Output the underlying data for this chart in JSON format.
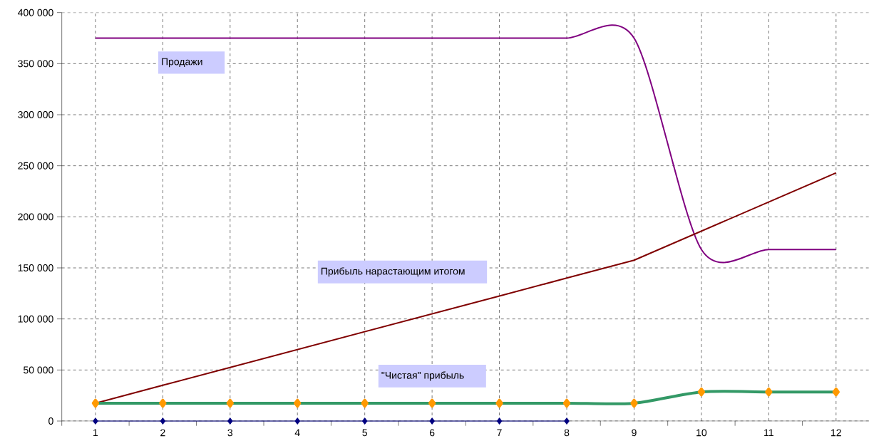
{
  "chart_data": {
    "type": "line",
    "categories": [
      "1",
      "2",
      "3",
      "4",
      "5",
      "6",
      "7",
      "8",
      "9",
      "10",
      "11",
      "12"
    ],
    "ylim": [
      0,
      400000
    ],
    "yticks": [
      {
        "value": 0,
        "label": "0"
      },
      {
        "value": 50000,
        "label": "50 000"
      },
      {
        "value": 100000,
        "label": "100 000"
      },
      {
        "value": 150000,
        "label": "150 000"
      },
      {
        "value": 200000,
        "label": "200 000"
      },
      {
        "value": 250000,
        "label": "250 000"
      },
      {
        "value": 300000,
        "label": "300 000"
      },
      {
        "value": 350000,
        "label": "350 000"
      },
      {
        "value": 400000,
        "label": "400 000"
      }
    ],
    "grid": true,
    "series": [
      {
        "name": "Продажи",
        "color": "#800080",
        "marker": "none",
        "values": [
          375000,
          375000,
          375000,
          375000,
          375000,
          375000,
          375000,
          375000,
          375000,
          168000,
          168000,
          168000
        ]
      },
      {
        "name": "Прибыль нарастающим итогом",
        "color": "#800000",
        "marker": "none",
        "values": [
          17500,
          35000,
          52500,
          70000,
          87500,
          105000,
          122500,
          140000,
          157500,
          186000,
          214500,
          243000
        ]
      },
      {
        "name": "\"Чистая\" прибыль",
        "color": "#339966",
        "marker": "diamond",
        "colors": [
          "#ff9900",
          "#ff9900",
          "#ff9900",
          "#ff9900",
          "#ff9900",
          "#ff9900",
          "#ff9900",
          "#ff9900",
          "#ff9900",
          "#ff9900",
          "#ff9900",
          "#ff9900"
        ],
        "values": [
          17500,
          17500,
          17500,
          17500,
          17500,
          17500,
          17500,
          17500,
          17500,
          28500,
          28500,
          28500
        ]
      },
      {
        "color": "#000080",
        "marker": "diamond",
        "values": [
          0,
          0,
          0,
          0,
          0,
          0,
          0,
          0,
          null,
          null,
          null,
          null
        ]
      }
    ]
  }
}
